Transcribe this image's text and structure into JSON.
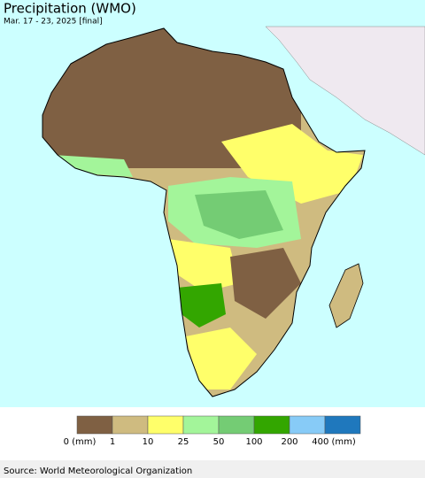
{
  "header": {
    "title": "Precipitation (WMO)",
    "subtitle": "Mar. 17 - 23, 2025 [final]"
  },
  "legend": {
    "items": [
      {
        "label": "0 (mm)",
        "color": "#7f6043"
      },
      {
        "label": "1",
        "color": "#cfbb80"
      },
      {
        "label": "10",
        "color": "#ffff6a"
      },
      {
        "label": "25",
        "color": "#a3f59a"
      },
      {
        "label": "50",
        "color": "#74cc74"
      },
      {
        "label": "100",
        "color": "#33a600"
      },
      {
        "label": "200",
        "color": "#87cbf7"
      },
      {
        "label": "400 (mm)",
        "color": "#1f78bd"
      }
    ]
  },
  "footer": {
    "source": "Source: World Meteorological Organization"
  }
}
